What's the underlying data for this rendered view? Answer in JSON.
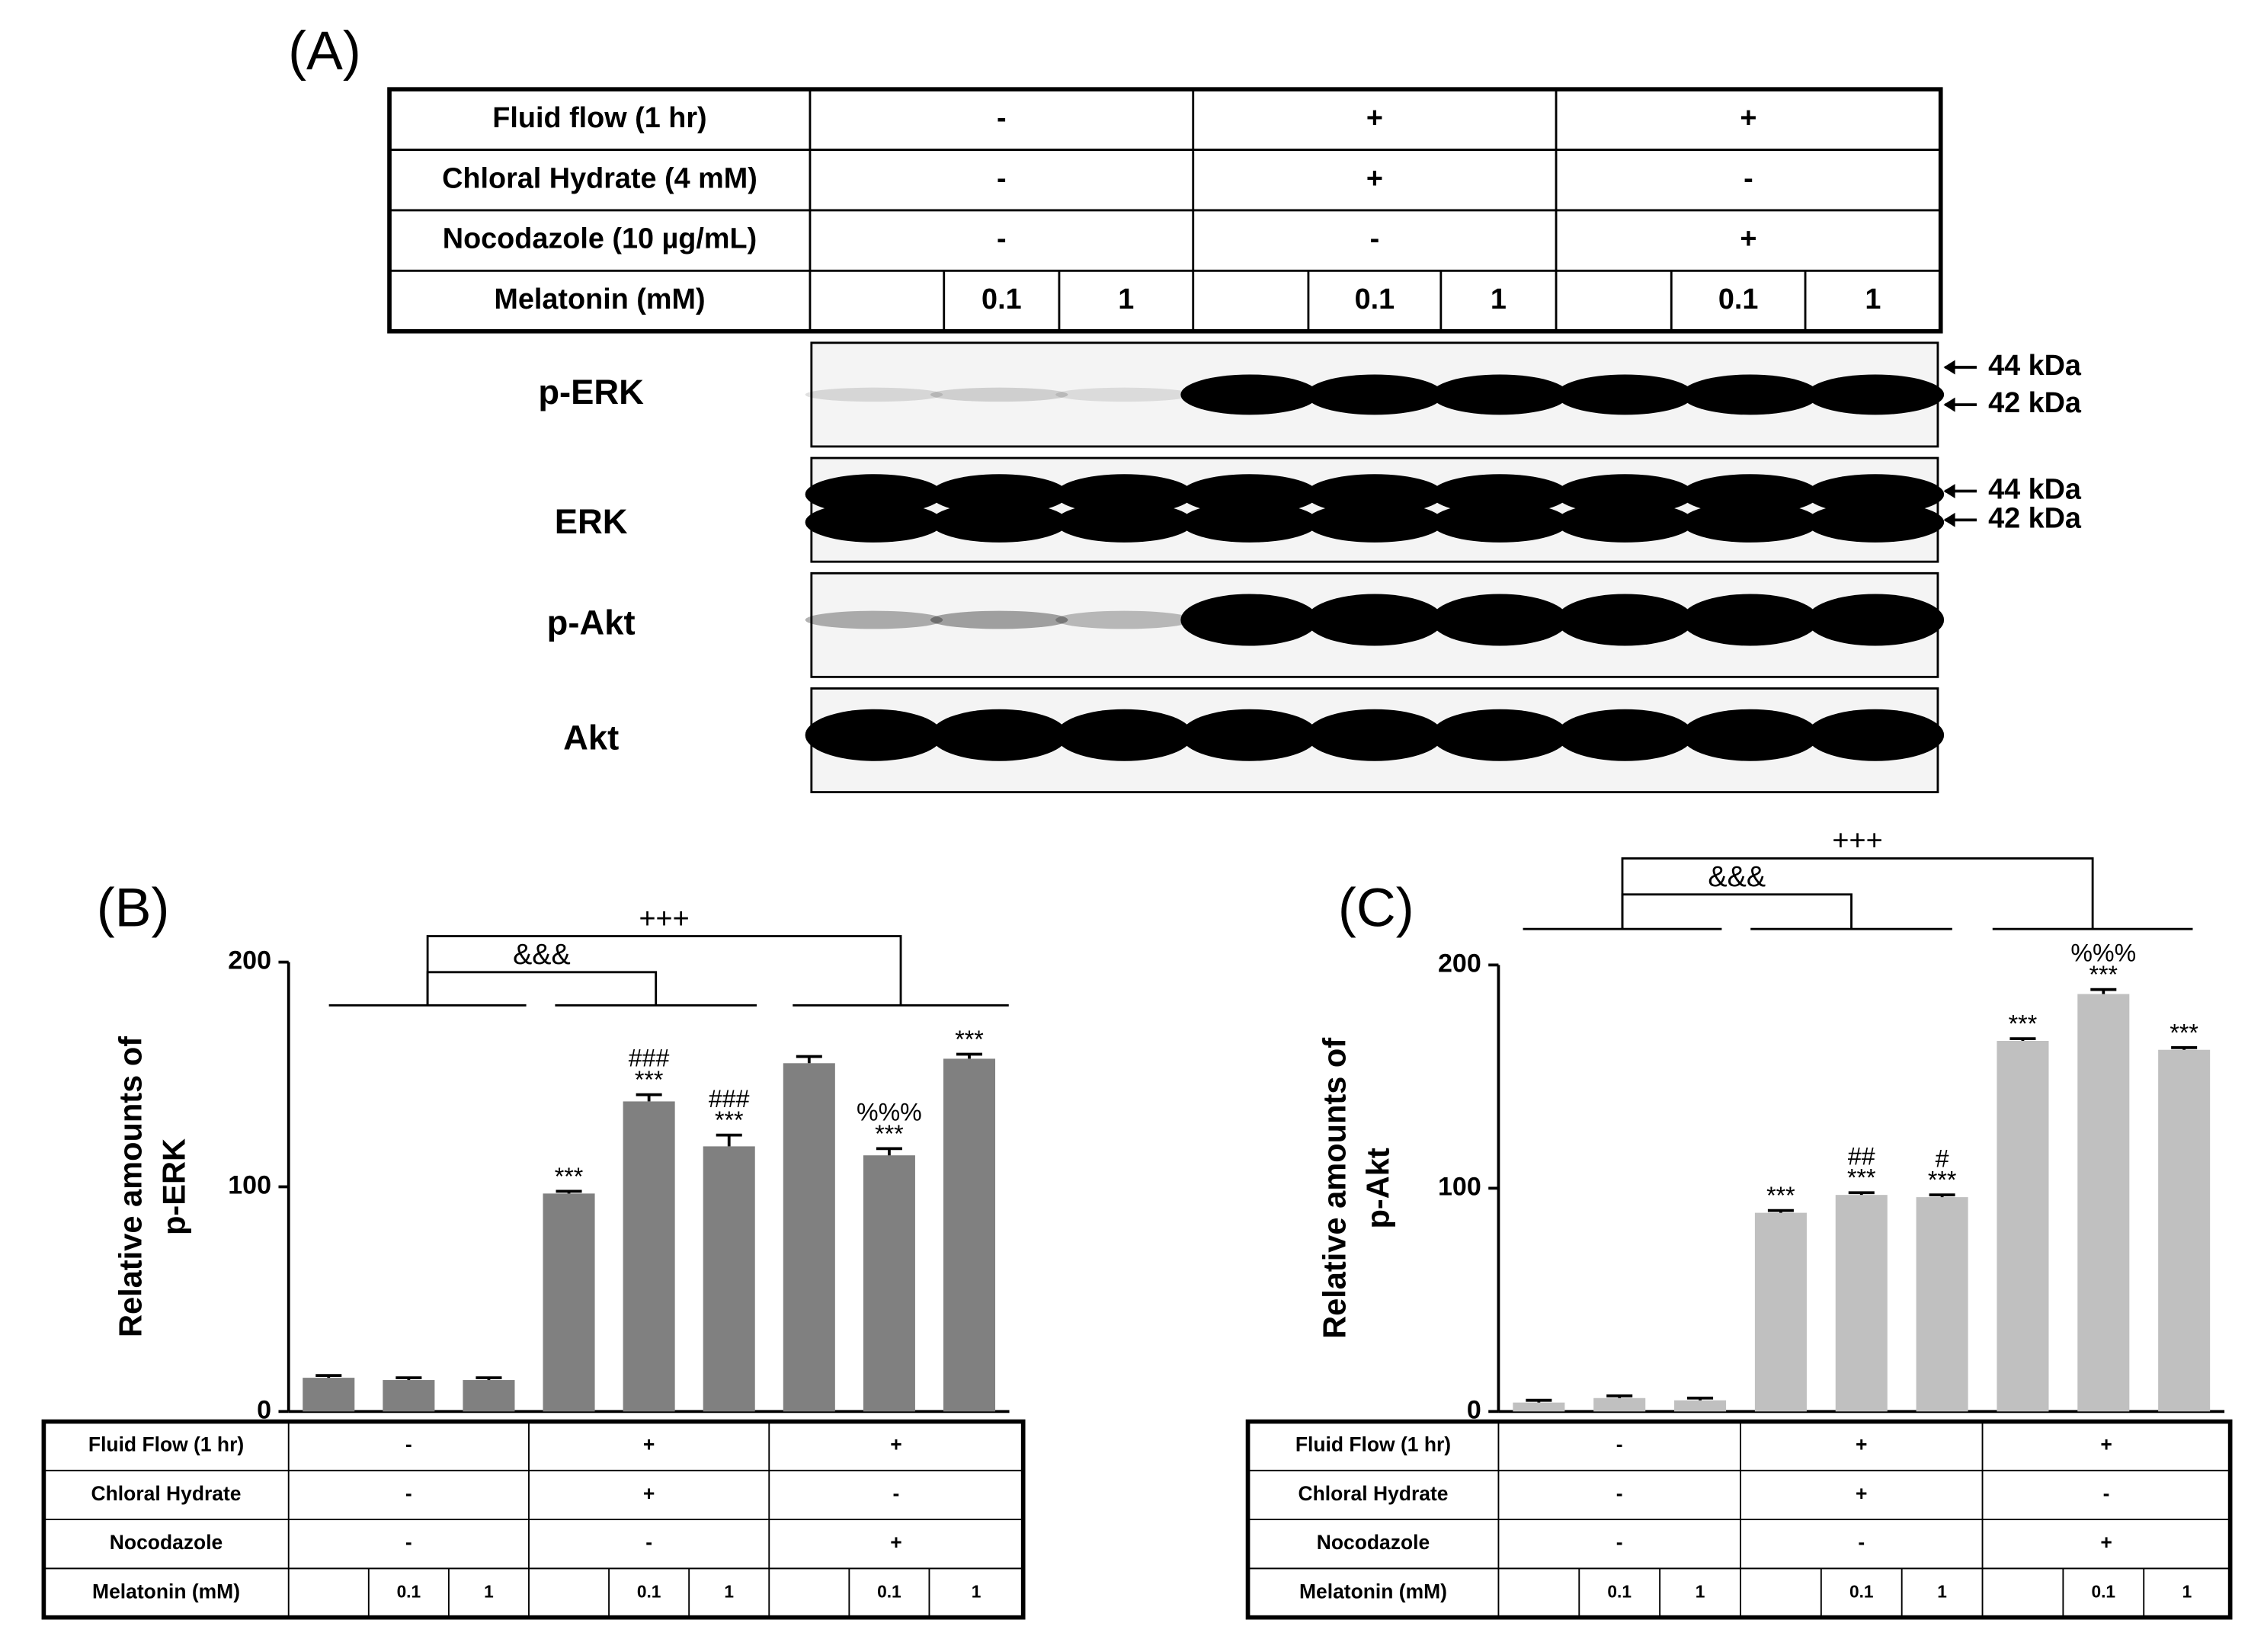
{
  "panel_a": {
    "label": "(A)",
    "table": {
      "rows": [
        {
          "label": "Fluid flow (1 hr)",
          "groups": [
            "-",
            "+",
            "+"
          ]
        },
        {
          "label": "Chloral Hydrate  (4 mM)",
          "groups": [
            "-",
            "+",
            "-"
          ]
        },
        {
          "label": "Nocodazole (10 µg/mL)",
          "groups": [
            "-",
            "-",
            "+"
          ]
        },
        {
          "label": "Melatonin (mM)",
          "lanes": [
            null,
            "0.1",
            "1",
            null,
            "0.1",
            "1",
            null,
            "0.1",
            "1"
          ]
        }
      ]
    },
    "blots": [
      {
        "name": "p-ERK",
        "markers": [
          "44 kDa",
          "42 kDa"
        ]
      },
      {
        "name": "ERK",
        "markers": [
          "44 kDa",
          "42 kDa"
        ]
      },
      {
        "name": "p-Akt"
      },
      {
        "name": "Akt"
      }
    ]
  },
  "chart_data": [
    {
      "type": "bar",
      "panel_label": "(B)",
      "y_label": [
        "Relative amounts of",
        "p-ERK"
      ],
      "color": "#808080",
      "values": [
        15,
        14,
        14,
        97,
        138,
        118,
        155,
        114,
        157
      ],
      "errors": [
        1,
        1,
        1,
        1,
        3,
        5,
        3,
        3,
        2
      ],
      "annotations": [
        null,
        null,
        null,
        [
          "***"
        ],
        [
          "###",
          "***"
        ],
        [
          "###",
          "***"
        ],
        null,
        [
          "%%%",
          "***"
        ],
        [
          "***"
        ]
      ],
      "comparisons": [
        "&&&",
        "+++"
      ],
      "ylim": [
        0,
        200
      ],
      "yticks": [
        0,
        100,
        200
      ],
      "conditions": {
        "rows": [
          {
            "label": "Fluid Flow (1 hr)",
            "groups": [
              "-",
              "+",
              "+"
            ]
          },
          {
            "label": "Chloral Hydrate",
            "groups": [
              "-",
              "+",
              "-"
            ]
          },
          {
            "label": "Nocodazole",
            "groups": [
              "-",
              "-",
              "+"
            ]
          },
          {
            "label": "Melatonin (mM)",
            "lanes": [
              null,
              "0.1",
              "1",
              null,
              "0.1",
              "1",
              null,
              "0.1",
              "1"
            ]
          }
        ]
      }
    },
    {
      "type": "bar",
      "panel_label": "(C)",
      "y_label": [
        "Relative amounts of",
        "p-Akt"
      ],
      "color": "#c0c0c0",
      "values": [
        4,
        6,
        5,
        89,
        97,
        96,
        166,
        187,
        162
      ],
      "errors": [
        1,
        1,
        1,
        1,
        1,
        1,
        1,
        2,
        1
      ],
      "annotations": [
        null,
        null,
        null,
        [
          "***"
        ],
        [
          "##",
          "***"
        ],
        [
          "#",
          "***"
        ],
        [
          "***"
        ],
        [
          "%%%",
          "***"
        ],
        [
          "***"
        ]
      ],
      "comparisons": [
        "&&&",
        "+++"
      ],
      "ylim": [
        0,
        200
      ],
      "yticks": [
        0,
        100,
        200
      ],
      "conditions": {
        "rows": [
          {
            "label": "Fluid Flow (1 hr)",
            "groups": [
              "-",
              "+",
              "+"
            ]
          },
          {
            "label": "Chloral Hydrate",
            "groups": [
              "-",
              "+",
              "-"
            ]
          },
          {
            "label": "Nocodazole",
            "groups": [
              "-",
              "-",
              "+"
            ]
          },
          {
            "label": "Melatonin (mM)",
            "lanes": [
              null,
              "0.1",
              "1",
              null,
              "0.1",
              "1",
              null,
              "0.1",
              "1"
            ]
          }
        ]
      }
    }
  ]
}
